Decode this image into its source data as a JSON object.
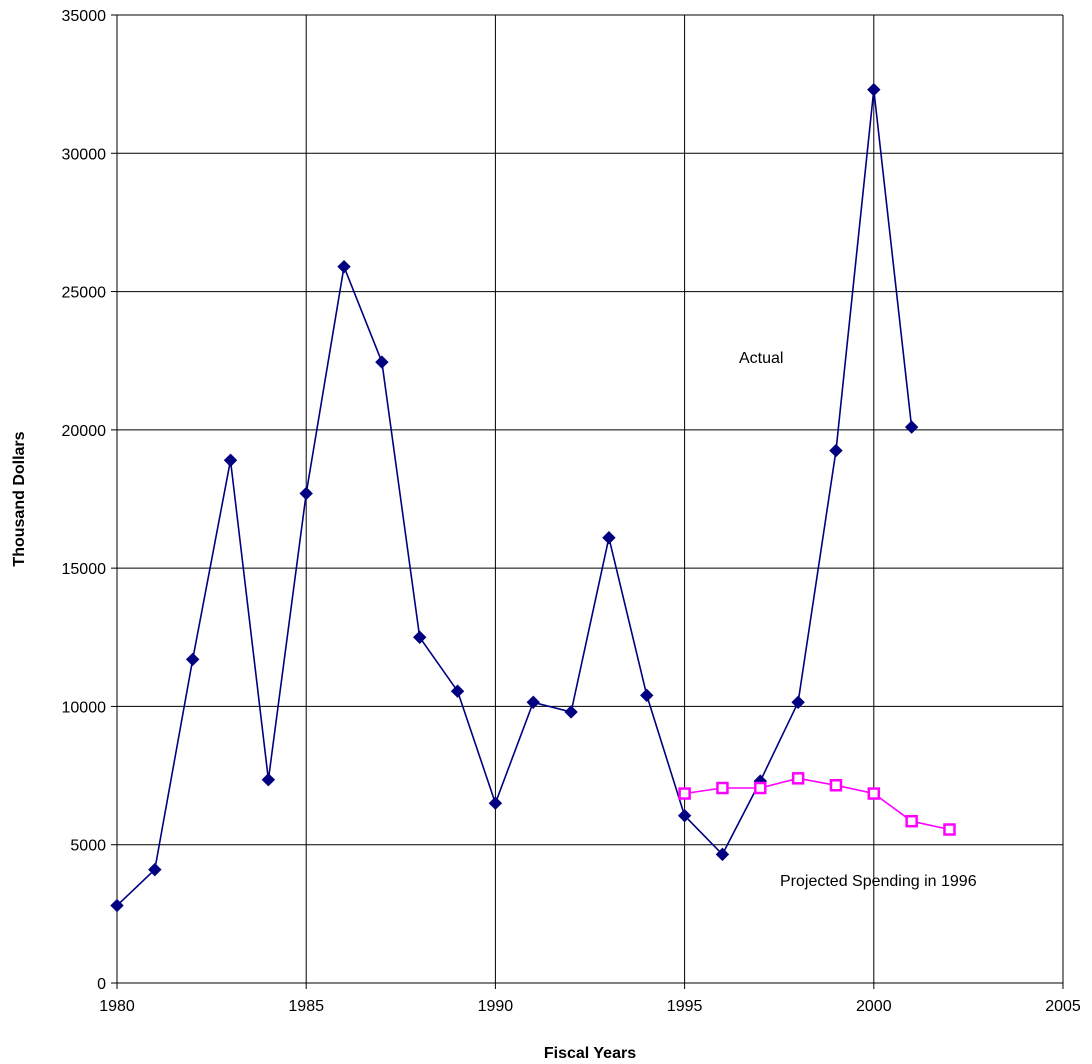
{
  "chart_data": {
    "type": "line",
    "title": "",
    "xlabel": "Fiscal Years",
    "ylabel": "Thousand Dollars",
    "xlim": [
      1980,
      2005
    ],
    "ylim": [
      0,
      35000
    ],
    "x_ticks": [
      "1980",
      "1985",
      "1990",
      "1995",
      "2000",
      "2005"
    ],
    "y_ticks": [
      "0",
      "5000",
      "10000",
      "15000",
      "20000",
      "25000",
      "30000",
      "35000"
    ],
    "grid": true,
    "annotations": [
      "Actual",
      "Projected Spending in 1996"
    ],
    "series": [
      {
        "color": "#000080",
        "marker": "diamond",
        "x": [
          1980,
          1981,
          1982,
          1983,
          1984,
          1985,
          1986,
          1987,
          1988,
          1989,
          1990,
          1991,
          1992,
          1993,
          1994,
          1995,
          1996,
          1997,
          1998,
          1999,
          2000,
          2001
        ],
        "values": [
          2800,
          4100,
          11700,
          18900,
          7350,
          17700,
          25900,
          22450,
          12500,
          10550,
          6500,
          10150,
          9800,
          16100,
          10400,
          6050,
          4650,
          7300,
          10150,
          19250,
          32300,
          20100
        ]
      },
      {
        "color": "#ff00ff",
        "marker": "square",
        "x": [
          1995,
          1996,
          1997,
          1998,
          1999,
          2000,
          2001,
          2002
        ],
        "values": [
          6850,
          7050,
          7050,
          7400,
          7150,
          6850,
          5850,
          5550
        ]
      }
    ]
  }
}
